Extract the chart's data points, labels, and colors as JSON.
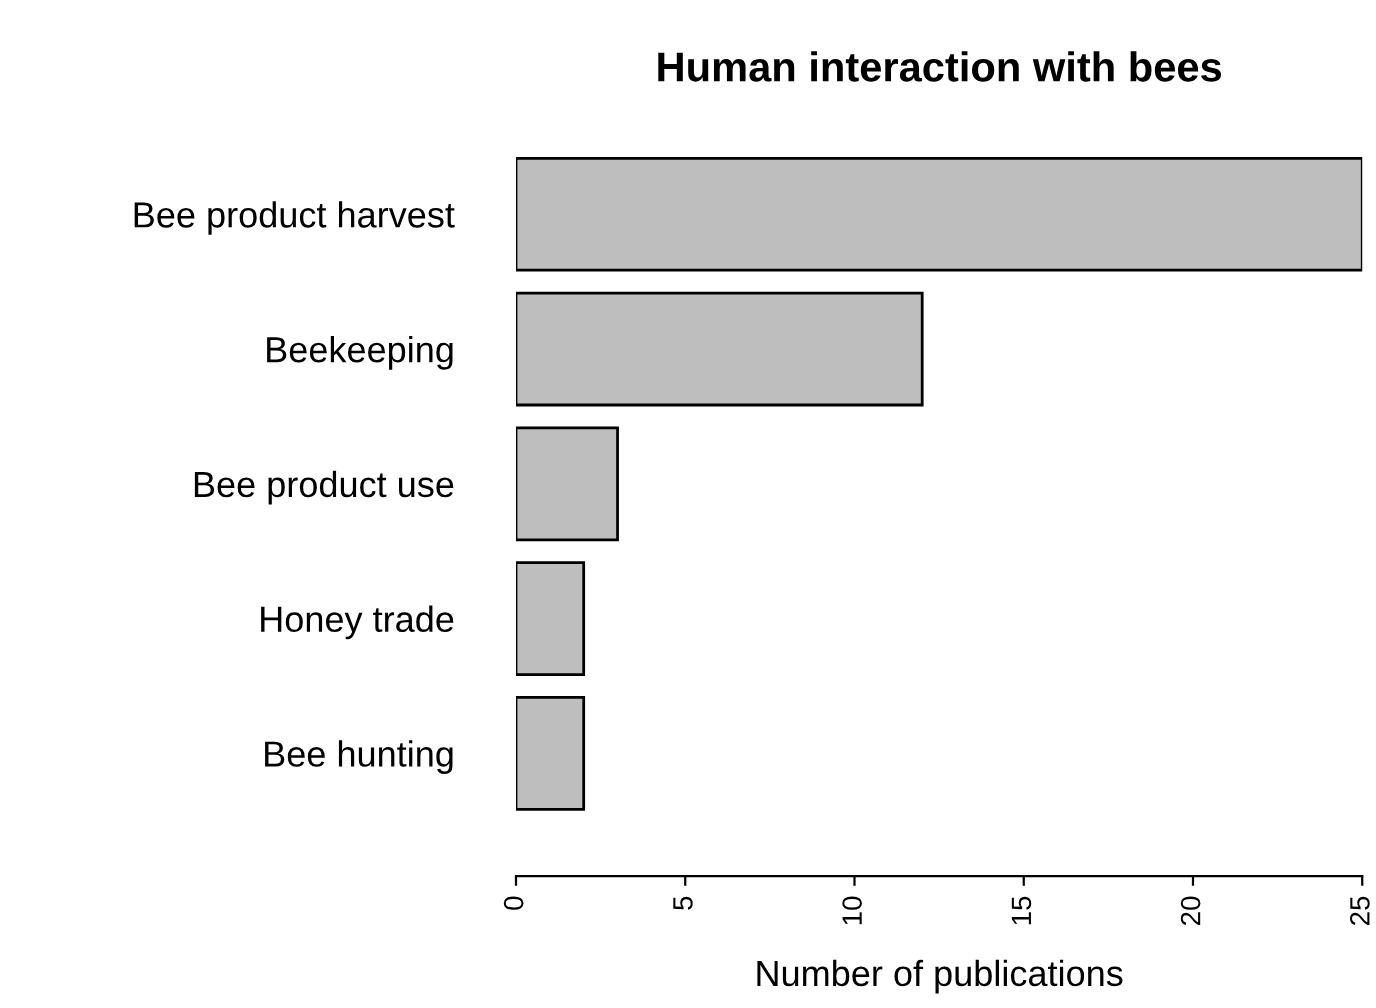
{
  "chart_data": {
    "type": "bar",
    "orientation": "horizontal",
    "title": "Human interaction with bees",
    "xlabel": "Number of publications",
    "categories": [
      "Bee product harvest",
      "Beekeeping",
      "Bee product use",
      "Honey trade",
      "Bee hunting"
    ],
    "values": [
      25,
      12,
      3,
      2,
      2
    ],
    "color": "#bebebe",
    "xlim": [
      0,
      25
    ],
    "xticks": [
      0,
      5,
      10,
      15,
      20,
      25
    ],
    "grid": false
  }
}
